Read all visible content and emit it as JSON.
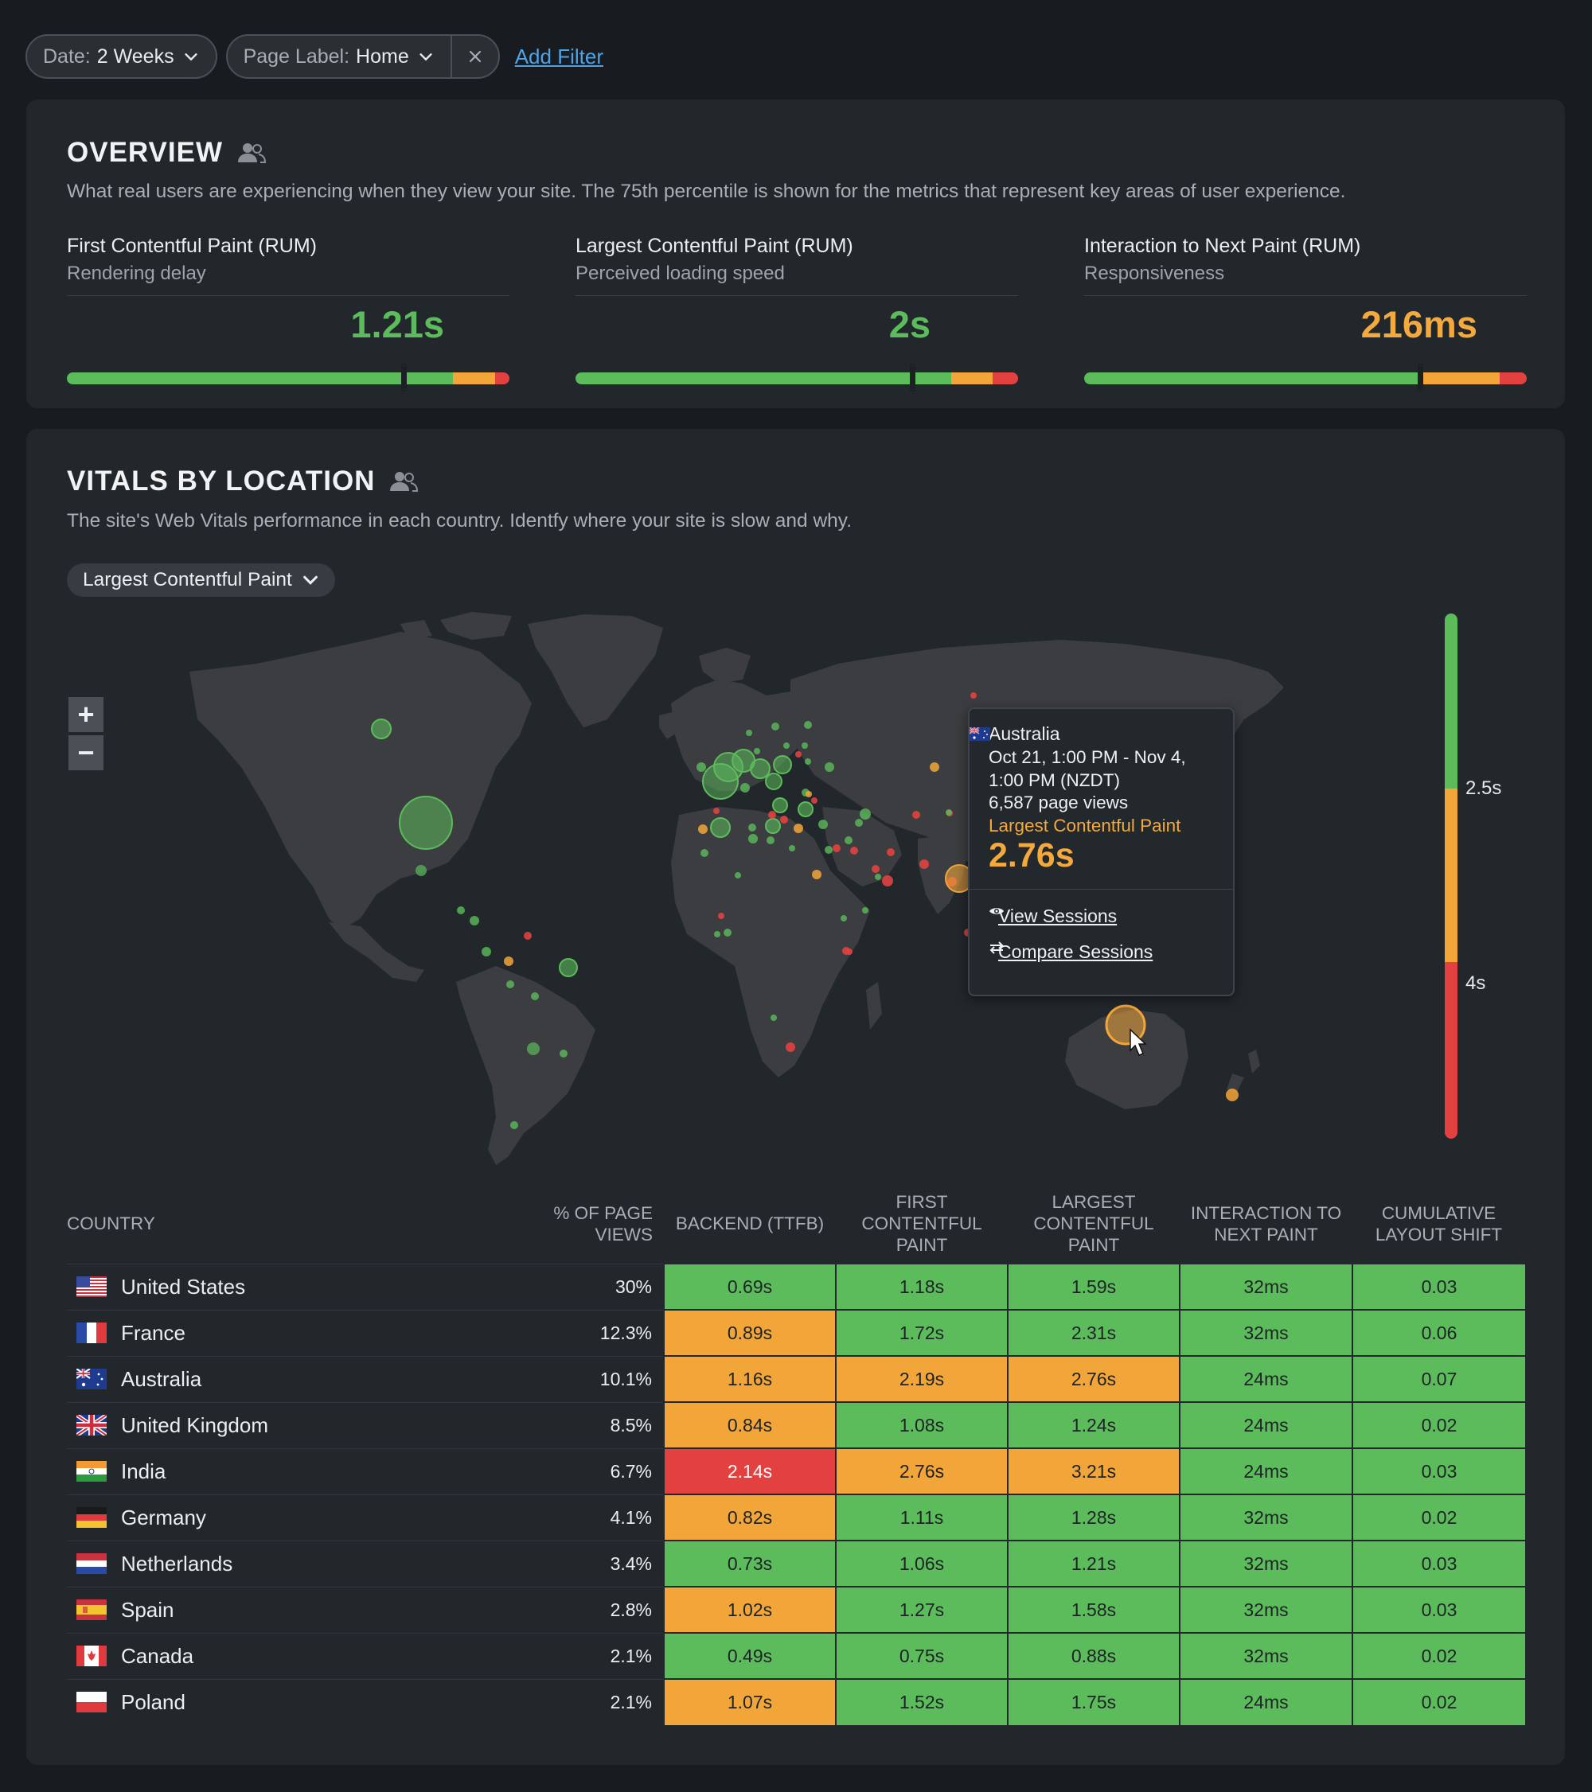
{
  "filters": {
    "date": {
      "key": "Date:",
      "value": "2 Weeks"
    },
    "page_label": {
      "key": "Page Label:",
      "value": "Home"
    },
    "add_filter": "Add Filter"
  },
  "overview": {
    "title": "OVERVIEW",
    "description": "What real users are experiencing when they view your site. The 75th percentile is shown for the metrics that represent key areas of user experience.",
    "metrics": [
      {
        "title": "First Contentful Paint (RUM)",
        "subtitle": "Rendering delay",
        "value": "1.21s",
        "status": "good",
        "color": "#5cbb5b"
      },
      {
        "title": "Largest Contentful Paint (RUM)",
        "subtitle": "Perceived loading speed",
        "value": "2s",
        "status": "good",
        "color": "#5cbb5b"
      },
      {
        "title": "Interaction to Next Paint (RUM)",
        "subtitle": "Responsiveness",
        "value": "216ms",
        "status": "warn",
        "color": "#f4a93c"
      }
    ]
  },
  "vitals": {
    "title": "VITALS BY LOCATION",
    "description": "The site's Web Vitals performance in each country. Identfy where your site is slow and why.",
    "metric_select": "Largest Contentful Paint",
    "legend": {
      "mid": "2.5s",
      "high": "4s"
    },
    "tooltip": {
      "country": "Australia",
      "range": "Oct 21, 1:00 PM - Nov 4, 1:00 PM (NZDT)",
      "page_views": "6,587 page views",
      "metric": "Largest Contentful Paint",
      "value": "2.76s",
      "view_sessions": "View Sessions",
      "compare_sessions": "Compare Sessions"
    },
    "table": {
      "headers": [
        "COUNTRY",
        "% OF PAGE VIEWS",
        "BACKEND (TTFB)",
        "FIRST CONTENTFUL PAINT",
        "LARGEST CONTENTFUL PAINT",
        "INTERACTION TO NEXT PAINT",
        "CUMULATIVE LAYOUT SHIFT"
      ],
      "rows": [
        {
          "country": "United States",
          "flag": "us",
          "views": "30%",
          "ttfb": "0.69s",
          "fcp": "1.18s",
          "lcp": "1.59s",
          "inp": "32ms",
          "cls": "0.03",
          "status": [
            "good",
            "good",
            "good",
            "good",
            "good"
          ]
        },
        {
          "country": "France",
          "flag": "fr",
          "views": "12.3%",
          "ttfb": "0.89s",
          "fcp": "1.72s",
          "lcp": "2.31s",
          "inp": "32ms",
          "cls": "0.06",
          "status": [
            "warn",
            "good",
            "good",
            "good",
            "good"
          ]
        },
        {
          "country": "Australia",
          "flag": "au",
          "views": "10.1%",
          "ttfb": "1.16s",
          "fcp": "2.19s",
          "lcp": "2.76s",
          "inp": "24ms",
          "cls": "0.07",
          "status": [
            "warn",
            "warn",
            "warn",
            "good",
            "good"
          ]
        },
        {
          "country": "United Kingdom",
          "flag": "gb",
          "views": "8.5%",
          "ttfb": "0.84s",
          "fcp": "1.08s",
          "lcp": "1.24s",
          "inp": "24ms",
          "cls": "0.02",
          "status": [
            "warn",
            "good",
            "good",
            "good",
            "good"
          ]
        },
        {
          "country": "India",
          "flag": "in",
          "views": "6.7%",
          "ttfb": "2.14s",
          "fcp": "2.76s",
          "lcp": "3.21s",
          "inp": "24ms",
          "cls": "0.03",
          "status": [
            "bad",
            "warn",
            "warn",
            "good",
            "good"
          ]
        },
        {
          "country": "Germany",
          "flag": "de",
          "views": "4.1%",
          "ttfb": "0.82s",
          "fcp": "1.11s",
          "lcp": "1.28s",
          "inp": "32ms",
          "cls": "0.02",
          "status": [
            "warn",
            "good",
            "good",
            "good",
            "good"
          ]
        },
        {
          "country": "Netherlands",
          "flag": "nl",
          "views": "3.4%",
          "ttfb": "0.73s",
          "fcp": "1.06s",
          "lcp": "1.21s",
          "inp": "32ms",
          "cls": "0.03",
          "status": [
            "good",
            "good",
            "good",
            "good",
            "good"
          ]
        },
        {
          "country": "Spain",
          "flag": "es",
          "views": "2.8%",
          "ttfb": "1.02s",
          "fcp": "1.27s",
          "lcp": "1.58s",
          "inp": "32ms",
          "cls": "0.03",
          "status": [
            "warn",
            "good",
            "good",
            "good",
            "good"
          ]
        },
        {
          "country": "Canada",
          "flag": "ca",
          "views": "2.1%",
          "ttfb": "0.49s",
          "fcp": "0.75s",
          "lcp": "0.88s",
          "inp": "32ms",
          "cls": "0.02",
          "status": [
            "good",
            "good",
            "good",
            "good",
            "good"
          ]
        },
        {
          "country": "Poland",
          "flag": "pl",
          "views": "2.1%",
          "ttfb": "1.07s",
          "fcp": "1.52s",
          "lcp": "1.75s",
          "inp": "24ms",
          "cls": "0.02",
          "status": [
            "warn",
            "good",
            "good",
            "good",
            "good"
          ]
        }
      ]
    }
  },
  "colors": {
    "good": "#5cbb5b",
    "warn": "#f2a63a",
    "bad": "#e24140",
    "link": "#4ea3e6"
  }
}
